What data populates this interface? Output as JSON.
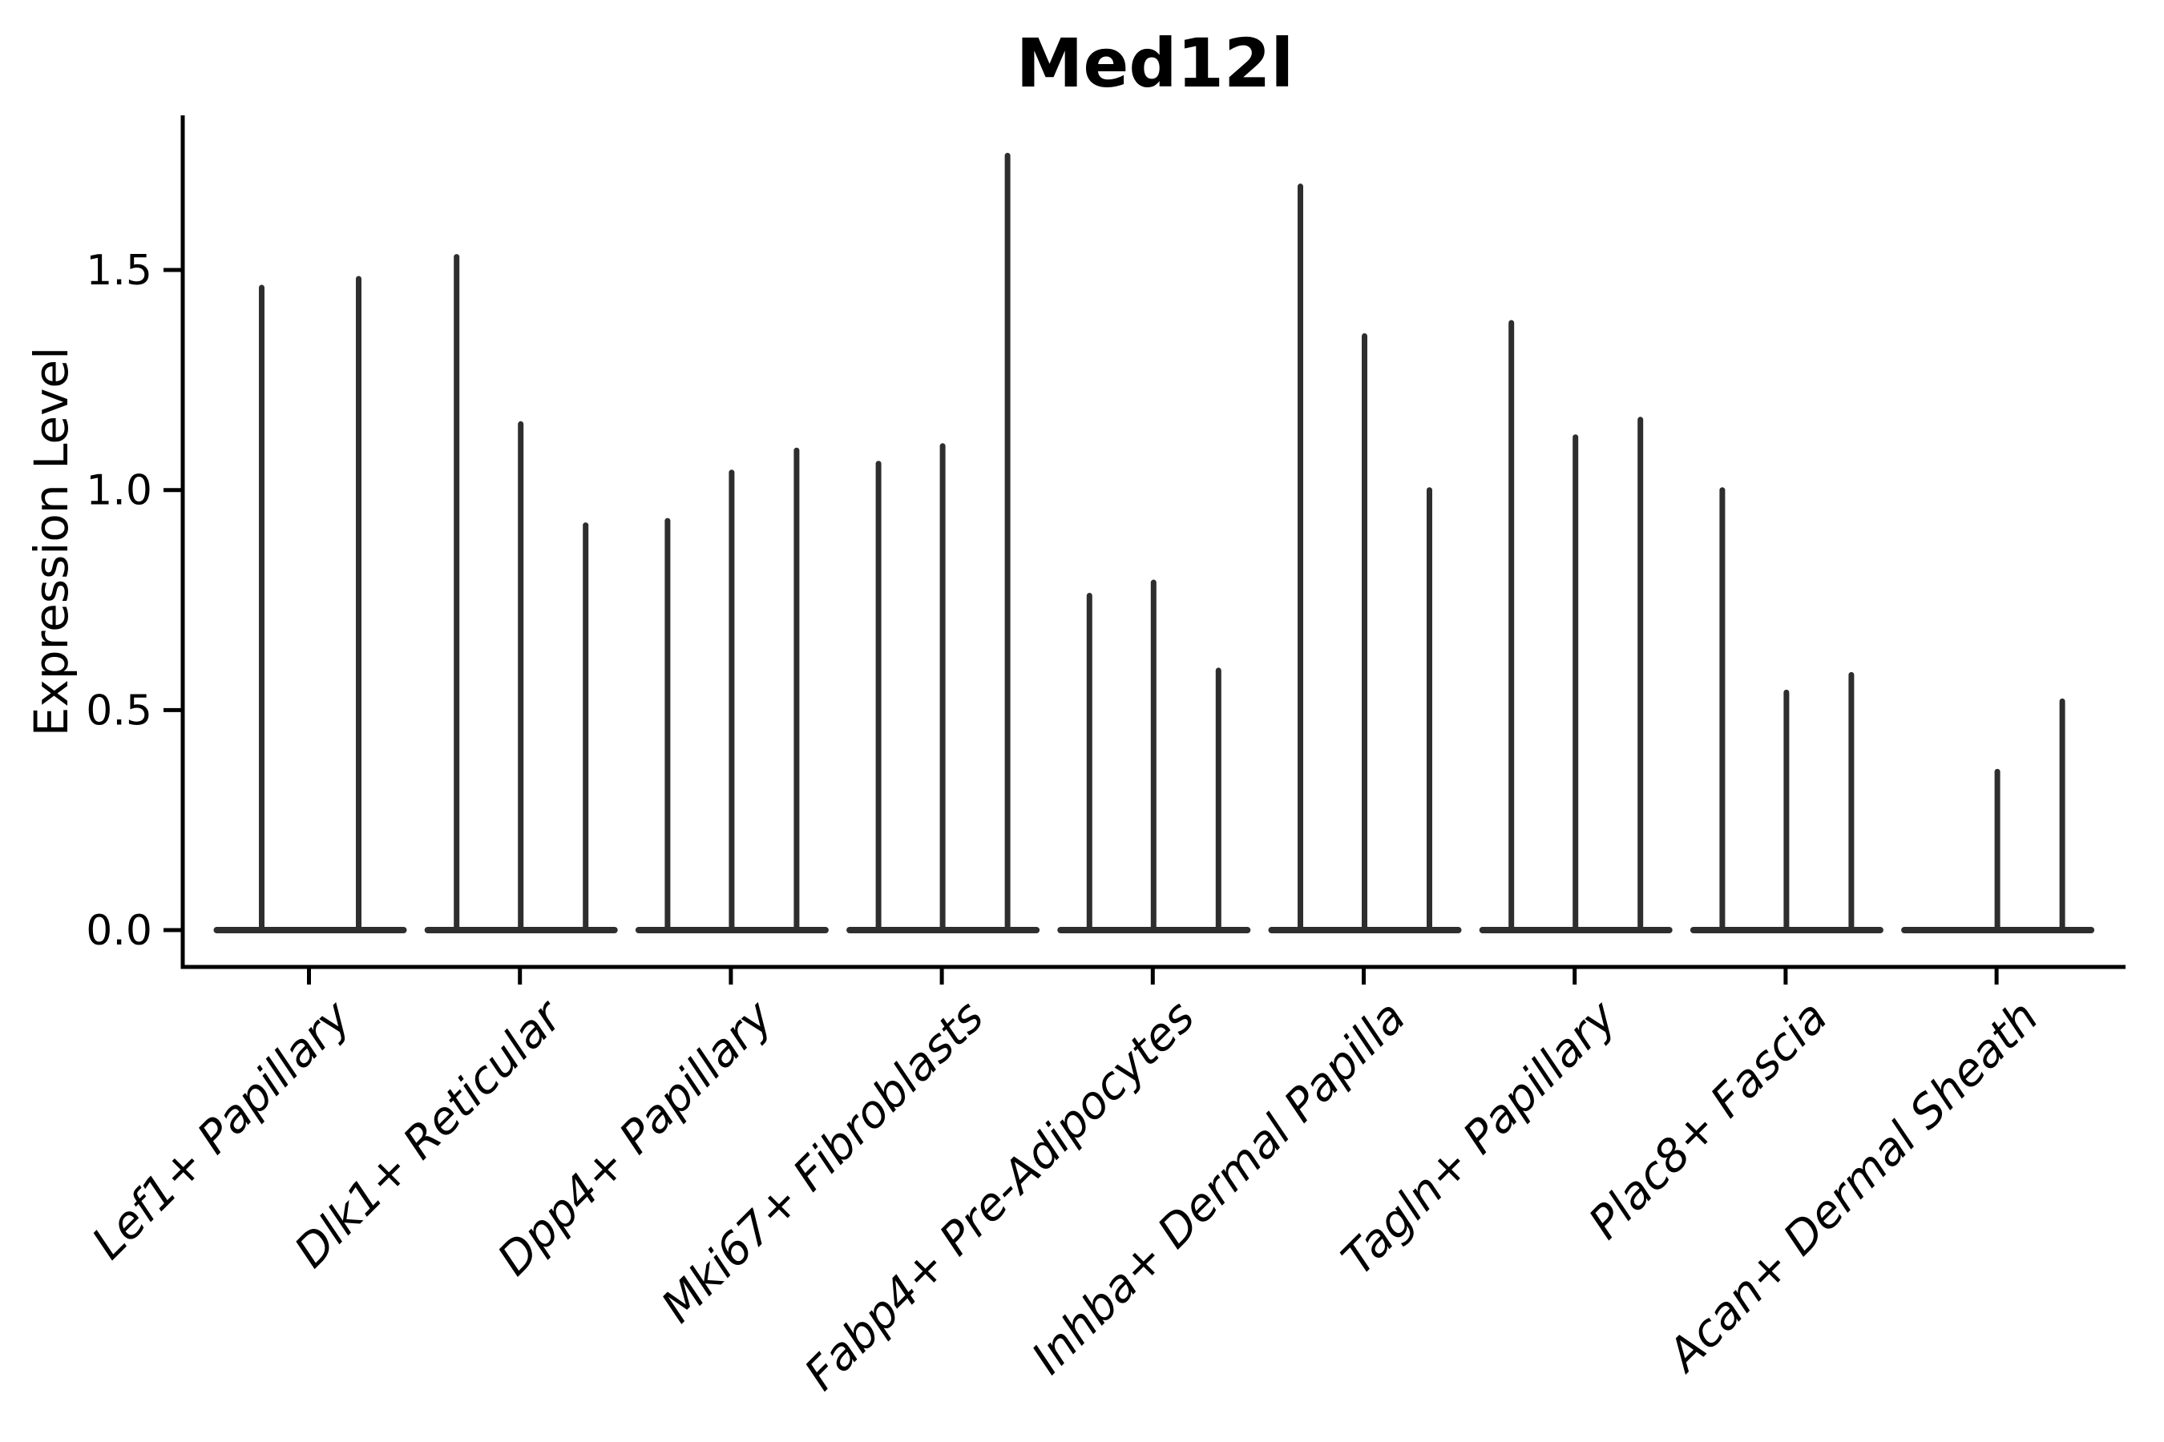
{
  "chart_data": {
    "type": "violin",
    "title": "Med12l",
    "ylabel": "Expression Level",
    "xlabel": "",
    "yticks": [
      "0.0",
      "0.5",
      "1.0",
      "1.5"
    ],
    "ytick_values": [
      0.0,
      0.5,
      1.0,
      1.5
    ],
    "ylim": [
      -0.08,
      1.85
    ],
    "grid": false,
    "legend": "none",
    "axis_color": "#000000",
    "violin_color": "#2e2e2e",
    "categories": [
      "Lef1+ Papillary",
      "Dlk1+ Reticular",
      "Dpp4+ Papillary",
      "Mki67+ Fibroblasts",
      "Fabp4+ Pre-Adipocytes",
      "Inhba+ Dermal Papilla",
      "Tagln+ Papillary",
      "Plac8+ Fascia",
      "Acan+ Dermal Sheath"
    ],
    "groups": [
      {
        "category": "Lef1+ Papillary",
        "violins": [
          {
            "max": 1.46
          },
          {
            "max": 1.48
          }
        ]
      },
      {
        "category": "Dlk1+ Reticular",
        "violins": [
          {
            "max": 1.53
          },
          {
            "max": 1.15
          },
          {
            "max": 0.92
          }
        ]
      },
      {
        "category": "Dpp4+ Papillary",
        "violins": [
          {
            "max": 0.93
          },
          {
            "max": 1.04
          },
          {
            "max": 1.09
          }
        ]
      },
      {
        "category": "Mki67+ Fibroblasts",
        "violins": [
          {
            "max": 1.06
          },
          {
            "max": 1.1
          },
          {
            "max": 1.76
          }
        ]
      },
      {
        "category": "Fabp4+ Pre-Adipocytes",
        "violins": [
          {
            "max": 0.76
          },
          {
            "max": 0.79
          },
          {
            "max": 0.59
          }
        ]
      },
      {
        "category": "Inhba+ Dermal Papilla",
        "violins": [
          {
            "max": 1.69
          },
          {
            "max": 1.35
          },
          {
            "max": 1.0
          }
        ]
      },
      {
        "category": "Tagln+ Papillary",
        "violins": [
          {
            "max": 1.38
          },
          {
            "max": 1.12
          },
          {
            "max": 1.16
          }
        ]
      },
      {
        "category": "Plac8+ Fascia",
        "violins": [
          {
            "max": 1.0
          },
          {
            "max": 0.54
          },
          {
            "max": 0.58
          }
        ]
      },
      {
        "category": "Acan+ Dermal Sheath",
        "violins": [
          {
            "max": 0.0
          },
          {
            "max": 0.36
          },
          {
            "max": 0.52
          }
        ]
      }
    ]
  }
}
